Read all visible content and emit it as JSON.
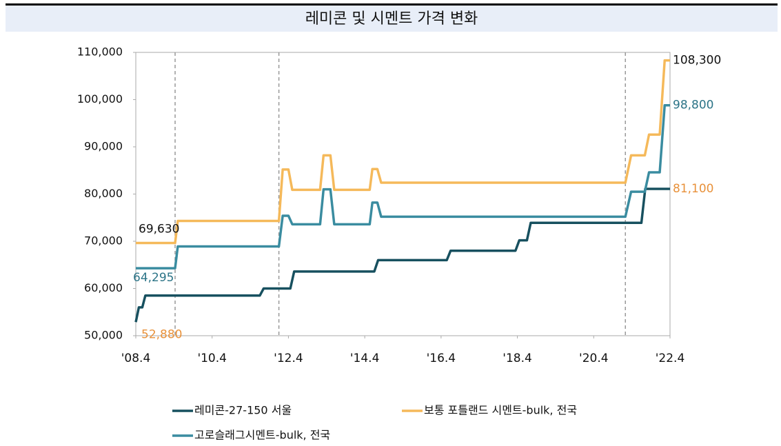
{
  "chart_data": {
    "type": "line",
    "title": "레미콘 및 시멘트 가격 변화",
    "xlim": [
      2008.25,
      2022.25
    ],
    "xticks": [
      {
        "value": 2008.25,
        "label": "'08.4"
      },
      {
        "value": 2010.25,
        "label": "'10.4"
      },
      {
        "value": 2012.25,
        "label": "'12.4"
      },
      {
        "value": 2014.25,
        "label": "'14.4"
      },
      {
        "value": 2016.25,
        "label": "'16.4"
      },
      {
        "value": 2018.25,
        "label": "'18.4"
      },
      {
        "value": 2020.25,
        "label": "'20.4"
      },
      {
        "value": 2022.25,
        "label": "'22.4"
      }
    ],
    "ylim": [
      50000,
      110000
    ],
    "yticks": [
      {
        "value": 50000,
        "label": "50,000"
      },
      {
        "value": 60000,
        "label": "60,000"
      },
      {
        "value": 70000,
        "label": "70,000"
      },
      {
        "value": 80000,
        "label": "80,000"
      },
      {
        "value": 90000,
        "label": "90,000"
      },
      {
        "value": 100000,
        "label": "100,000"
      },
      {
        "value": 110000,
        "label": "110,000"
      }
    ],
    "vlines": [
      2009.28,
      2012.0,
      2021.08
    ],
    "series": [
      {
        "name": "레미콘-27-150 서울",
        "color": "#17505f",
        "x": [
          2008.25,
          2008.33,
          2008.42,
          2008.5,
          2011.5,
          2011.6,
          2012.3,
          2012.4,
          2014.5,
          2014.6,
          2016.4,
          2016.5,
          2018.2,
          2018.3,
          2018.5,
          2018.6,
          2021.5,
          2021.6,
          2022.25
        ],
        "values": [
          52880,
          56000,
          56000,
          58500,
          58500,
          60000,
          60000,
          63600,
          63600,
          66000,
          66000,
          68000,
          68000,
          70200,
          70200,
          73900,
          73900,
          81100,
          81100
        ],
        "value_labels": [
          "52,880",
          null,
          null,
          null,
          null,
          null,
          null,
          null,
          null,
          null,
          null,
          null,
          null,
          null,
          null,
          null,
          null,
          null,
          "81,100"
        ],
        "label_color": "#e8913a"
      },
      {
        "name": "보통 포틀랜드 시멘트-bulk, 전국",
        "color": "#f5b95a",
        "x": [
          2008.25,
          2009.28,
          2009.35,
          2012.0,
          2012.1,
          2012.25,
          2012.35,
          2013.08,
          2013.17,
          2013.35,
          2013.45,
          2014.38,
          2014.45,
          2014.58,
          2014.68,
          2021.08,
          2021.23,
          2021.59,
          2021.7,
          2021.98,
          2022.11,
          2022.25
        ],
        "values": [
          69630,
          69630,
          74300,
          74300,
          85200,
          85200,
          80900,
          80900,
          88200,
          88200,
          80900,
          80900,
          85300,
          85300,
          82400,
          82400,
          88200,
          88200,
          92600,
          92600,
          108300,
          108300
        ],
        "value_labels": [
          "69,630",
          null,
          null,
          null,
          null,
          null,
          null,
          null,
          null,
          null,
          null,
          null,
          null,
          null,
          null,
          null,
          null,
          null,
          null,
          null,
          null,
          "108,300"
        ],
        "label_color": "#111111"
      },
      {
        "name": "고로슬래그시멘트-bulk, 전국",
        "color": "#3a8ca0",
        "x": [
          2008.25,
          2009.28,
          2009.35,
          2012.0,
          2012.1,
          2012.25,
          2012.35,
          2013.08,
          2013.17,
          2013.35,
          2013.45,
          2014.38,
          2014.45,
          2014.58,
          2014.68,
          2021.08,
          2021.23,
          2021.59,
          2021.7,
          2021.98,
          2022.11,
          2022.25
        ],
        "values": [
          64295,
          64295,
          68900,
          68900,
          75400,
          75400,
          73600,
          73600,
          81000,
          81000,
          73600,
          73600,
          78200,
          78200,
          75200,
          75200,
          80500,
          80500,
          84600,
          84600,
          98800,
          98800
        ],
        "value_labels": [
          "64,295",
          null,
          null,
          null,
          null,
          null,
          null,
          null,
          null,
          null,
          null,
          null,
          null,
          null,
          null,
          null,
          null,
          null,
          null,
          null,
          null,
          "98,800"
        ],
        "label_color": "#2c7487"
      }
    ]
  }
}
